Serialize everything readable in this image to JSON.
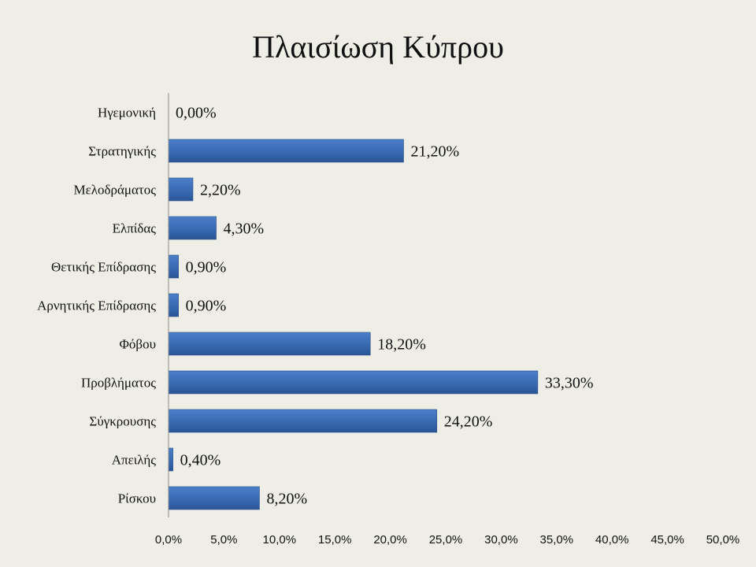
{
  "chart_data": {
    "type": "bar",
    "orientation": "horizontal",
    "title": "Πλαισίωση Κύπρου",
    "categories": [
      "Ηγεμονική",
      "Στρατηγικής",
      "Μελοδράματος",
      "Ελπίδας",
      "Θετικής Επίδρασης",
      "Αρνητικής Επίδρασης",
      "Φόβου",
      "Προβλήματος",
      "Σύγκρουσης",
      "Απειλής",
      "Ρίσκου"
    ],
    "values": [
      0.0,
      21.2,
      2.2,
      4.3,
      0.9,
      0.9,
      18.2,
      33.3,
      24.2,
      0.4,
      8.2
    ],
    "value_labels": [
      "0,00%",
      "21,20%",
      "2,20%",
      "4,30%",
      "0,90%",
      "0,90%",
      "18,20%",
      "33,30%",
      "24,20%",
      "0,40%",
      "8,20%"
    ],
    "xlim": [
      0,
      50
    ],
    "xticks": [
      0,
      5,
      10,
      15,
      20,
      25,
      30,
      35,
      40,
      45,
      50
    ],
    "xtick_labels": [
      "0,0%",
      "5,0%",
      "10,0%",
      "15,0%",
      "20,0%",
      "25,0%",
      "30,0%",
      "35,0%",
      "40,0%",
      "45,0%",
      "50,0%"
    ],
    "xlabel": "",
    "ylabel": "",
    "grid": false,
    "legend": "none",
    "colors": {
      "bar": "#3a6cb4",
      "bar_dark": "#2a4f8a",
      "background": "#eeede6",
      "axis": "#8c8c8c"
    }
  }
}
